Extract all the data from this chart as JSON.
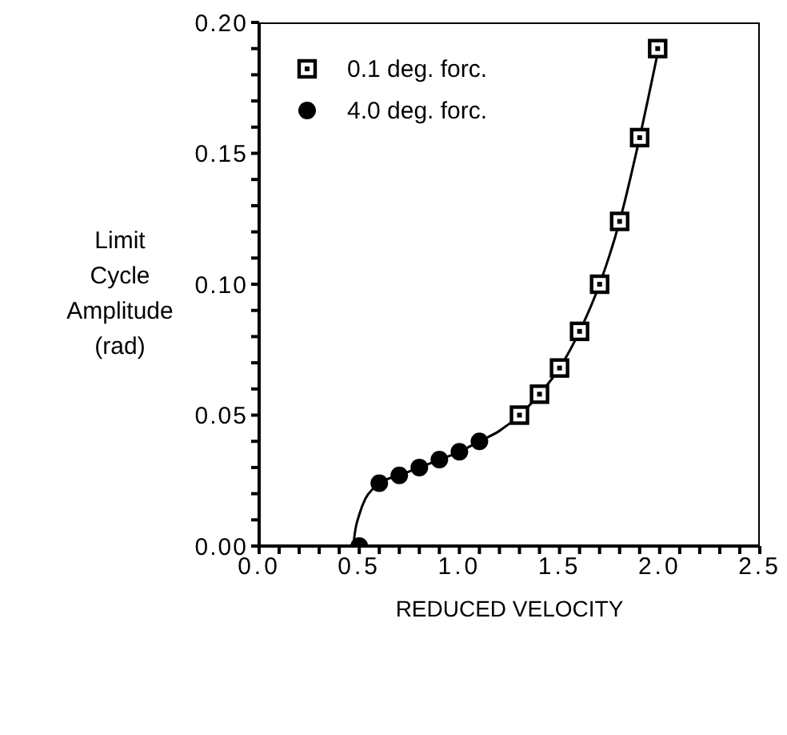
{
  "chart_data": {
    "type": "scatter",
    "xlabel": "REDUCED VELOCITY",
    "ylabel": "Limit\nCycle\nAmplitude\n(rad)",
    "xlim": [
      0,
      2.5
    ],
    "ylim": [
      0,
      0.2
    ],
    "xticks": [
      {
        "value": 0,
        "label": "0.0"
      },
      {
        "value": 0.1,
        "label": null
      },
      {
        "value": 0.2,
        "label": null
      },
      {
        "value": 0.3,
        "label": null
      },
      {
        "value": 0.4,
        "label": null
      },
      {
        "value": 0.5,
        "label": "0.5"
      },
      {
        "value": 0.6,
        "label": null
      },
      {
        "value": 0.7,
        "label": null
      },
      {
        "value": 0.8,
        "label": null
      },
      {
        "value": 0.9,
        "label": null
      },
      {
        "value": 1,
        "label": "1.0"
      },
      {
        "value": 1.1,
        "label": null
      },
      {
        "value": 1.2,
        "label": null
      },
      {
        "value": 1.3,
        "label": null
      },
      {
        "value": 1.4,
        "label": null
      },
      {
        "value": 1.5,
        "label": "1.5"
      },
      {
        "value": 1.6,
        "label": null
      },
      {
        "value": 1.7,
        "label": null
      },
      {
        "value": 1.8,
        "label": null
      },
      {
        "value": 1.9,
        "label": null
      },
      {
        "value": 2,
        "label": "2.0"
      },
      {
        "value": 2.1,
        "label": null
      },
      {
        "value": 2.2,
        "label": null
      },
      {
        "value": 2.3,
        "label": null
      },
      {
        "value": 2.4,
        "label": null
      },
      {
        "value": 2.5,
        "label": "2.5"
      }
    ],
    "yticks": [
      {
        "value": 0,
        "label": "0.00"
      },
      {
        "value": 0.01,
        "label": null
      },
      {
        "value": 0.02,
        "label": null
      },
      {
        "value": 0.03,
        "label": null
      },
      {
        "value": 0.04,
        "label": null
      },
      {
        "value": 0.05,
        "label": "0.05"
      },
      {
        "value": 0.06,
        "label": null
      },
      {
        "value": 0.07,
        "label": null
      },
      {
        "value": 0.08,
        "label": null
      },
      {
        "value": 0.09,
        "label": null
      },
      {
        "value": 0.1,
        "label": "0.10"
      },
      {
        "value": 0.11,
        "label": null
      },
      {
        "value": 0.12,
        "label": null
      },
      {
        "value": 0.13,
        "label": null
      },
      {
        "value": 0.14,
        "label": null
      },
      {
        "value": 0.15,
        "label": "0.15"
      },
      {
        "value": 0.16,
        "label": null
      },
      {
        "value": 0.17,
        "label": null
      },
      {
        "value": 0.18,
        "label": null
      },
      {
        "value": 0.19,
        "label": null
      },
      {
        "value": 0.2,
        "label": "0.20"
      }
    ],
    "legend": "top left",
    "series": [
      {
        "type": "line",
        "color": "#000000",
        "marker": "none",
        "x": [
          0.47,
          0.48,
          0.5,
          0.53,
          0.57,
          0.6,
          0.7,
          0.8,
          0.9,
          1.0,
          1.1,
          1.2,
          1.3,
          1.4,
          1.5,
          1.6,
          1.7,
          1.8,
          1.9,
          2.0
        ],
        "values": [
          0,
          0.006,
          0.012,
          0.018,
          0.022,
          0.024,
          0.027,
          0.03,
          0.033,
          0.036,
          0.04,
          0.044,
          0.05,
          0.058,
          0.068,
          0.082,
          0.1,
          0.124,
          0.156,
          0.192
        ]
      },
      {
        "name": "0.1 deg. forc.",
        "color": "#000000",
        "marker": "square",
        "x": [
          1.3,
          1.4,
          1.5,
          1.6,
          1.7,
          1.8,
          1.9,
          1.99
        ],
        "values": [
          0.05,
          0.058,
          0.068,
          0.082,
          0.1,
          0.124,
          0.156,
          0.19
        ]
      },
      {
        "name": "4.0 deg. forc.",
        "color": "#000000",
        "marker": "circle",
        "x": [
          0.5,
          0.6,
          0.7,
          0.8,
          0.9,
          1.0,
          1.1
        ],
        "values": [
          0,
          0.024,
          0.027,
          0.03,
          0.033,
          0.036,
          0.04
        ]
      }
    ]
  }
}
